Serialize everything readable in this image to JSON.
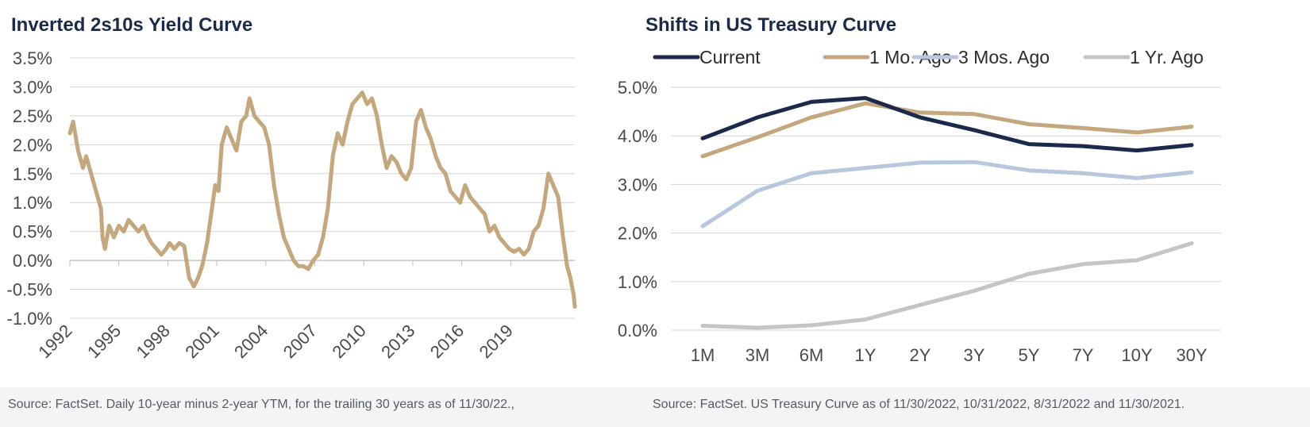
{
  "left": {
    "title": "Inverted 2s10s Yield Curve",
    "source": "Source: FactSet. Daily 10-year minus 2-year YTM, for the trailing 30 years as of 11/30/22.,"
  },
  "right": {
    "title": "Shifts in US Treasury Curve",
    "source": "Source: FactSet. US Treasury Curve as of 11/30/2022, 10/31/2022, 8/31/2022 and 11/30/2021."
  },
  "chart_data": [
    {
      "type": "line",
      "title": "Inverted 2s10s Yield Curve",
      "xlabel": "",
      "ylabel": "",
      "xlim": [
        1992.0,
        2022.92
      ],
      "ylim": [
        -1.0,
        3.5
      ],
      "yticks": [
        "3.5%",
        "3.0%",
        "2.5%",
        "2.0%",
        "1.5%",
        "1.0%",
        "0.5%",
        "0.0%",
        "-0.5%",
        "-1.0%"
      ],
      "xticks": [
        "1992",
        "1995",
        "1998",
        "2001",
        "2004",
        "2007",
        "2010",
        "2013",
        "2016",
        "2019"
      ],
      "xtick_values": [
        1992,
        1995,
        1998,
        2001,
        2004,
        2007,
        2010,
        2013,
        2016,
        2019
      ],
      "grid": true,
      "series": [
        {
          "color": "#c4a77d",
          "x": [
            1992.0,
            1992.2,
            1992.5,
            1992.8,
            1993.0,
            1993.3,
            1993.6,
            1993.9,
            1994.0,
            1994.15,
            1994.4,
            1994.7,
            1995.0,
            1995.3,
            1995.6,
            1995.9,
            1996.2,
            1996.5,
            1996.8,
            1997.0,
            1997.3,
            1997.6,
            1997.9,
            1998.1,
            1998.4,
            1998.7,
            1999.0,
            1999.3,
            1999.6,
            1999.85,
            2000.1,
            2000.4,
            2000.7,
            2000.9,
            2001.1,
            2001.3,
            2001.6,
            2001.9,
            2002.2,
            2002.5,
            2002.8,
            2003.0,
            2003.3,
            2003.6,
            2003.9,
            2004.2,
            2004.5,
            2004.8,
            2005.1,
            2005.4,
            2005.7,
            2006.0,
            2006.3,
            2006.6,
            2006.9,
            2007.2,
            2007.5,
            2007.8,
            2008.1,
            2008.4,
            2008.7,
            2009.0,
            2009.3,
            2009.6,
            2009.9,
            2010.2,
            2010.5,
            2010.8,
            2011.1,
            2011.4,
            2011.7,
            2012.0,
            2012.3,
            2012.6,
            2012.9,
            2013.2,
            2013.5,
            2013.8,
            2014.1,
            2014.4,
            2014.7,
            2015.0,
            2015.3,
            2015.6,
            2015.9,
            2016.2,
            2016.5,
            2016.8,
            2017.1,
            2017.4,
            2017.7,
            2018.0,
            2018.3,
            2018.6,
            2018.9,
            2019.2,
            2019.5,
            2019.8,
            2020.1,
            2020.4,
            2020.7,
            2021.0,
            2021.3,
            2021.6,
            2021.9,
            2022.2,
            2022.45,
            2022.65,
            2022.85,
            2022.92
          ],
          "values": [
            2.2,
            2.4,
            1.9,
            1.6,
            1.8,
            1.5,
            1.2,
            0.9,
            0.4,
            0.2,
            0.6,
            0.4,
            0.6,
            0.5,
            0.7,
            0.6,
            0.5,
            0.6,
            0.4,
            0.3,
            0.2,
            0.1,
            0.2,
            0.3,
            0.2,
            0.3,
            0.25,
            -0.3,
            -0.45,
            -0.3,
            -0.1,
            0.3,
            0.9,
            1.3,
            1.2,
            2.0,
            2.3,
            2.1,
            1.9,
            2.4,
            2.5,
            2.8,
            2.5,
            2.4,
            2.3,
            2.0,
            1.3,
            0.8,
            0.4,
            0.2,
            0.0,
            -0.1,
            -0.1,
            -0.15,
            0.0,
            0.1,
            0.4,
            0.9,
            1.8,
            2.2,
            2.0,
            2.4,
            2.7,
            2.8,
            2.9,
            2.7,
            2.8,
            2.5,
            2.0,
            1.6,
            1.8,
            1.7,
            1.5,
            1.4,
            1.6,
            2.4,
            2.6,
            2.3,
            2.1,
            1.8,
            1.6,
            1.5,
            1.2,
            1.1,
            1.0,
            1.3,
            1.1,
            1.0,
            0.9,
            0.8,
            0.5,
            0.6,
            0.4,
            0.3,
            0.2,
            0.15,
            0.2,
            0.1,
            0.2,
            0.5,
            0.6,
            0.9,
            1.5,
            1.3,
            1.1,
            0.4,
            -0.1,
            -0.3,
            -0.6,
            -0.8
          ]
        }
      ]
    },
    {
      "type": "line",
      "title": "Shifts in US Treasury Curve",
      "xlabel": "",
      "ylabel": "",
      "categories": [
        "1M",
        "3M",
        "6M",
        "1Y",
        "2Y",
        "3Y",
        "5Y",
        "7Y",
        "10Y",
        "30Y"
      ],
      "ylim": [
        0.0,
        5.0
      ],
      "yticks": [
        "5.0%",
        "4.0%",
        "3.0%",
        "2.0%",
        "1.0%",
        "0.0%"
      ],
      "grid": true,
      "legend": "top",
      "series": [
        {
          "name": "Current",
          "color": "#1b2a4a",
          "values": [
            3.95,
            4.38,
            4.7,
            4.78,
            4.38,
            4.12,
            3.83,
            3.79,
            3.7,
            3.81
          ]
        },
        {
          "name": "1 Mo. Ago",
          "color": "#c4a77d",
          "values": [
            3.58,
            3.97,
            4.38,
            4.67,
            4.48,
            4.45,
            4.24,
            4.16,
            4.07,
            4.19
          ]
        },
        {
          "name": "3 Mos. Ago",
          "color": "#b7c7de",
          "values": [
            2.14,
            2.87,
            3.23,
            3.34,
            3.45,
            3.46,
            3.29,
            3.23,
            3.13,
            3.25
          ]
        },
        {
          "name": "1 Yr. Ago",
          "color": "#c5c5c5",
          "values": [
            0.09,
            0.05,
            0.1,
            0.22,
            0.52,
            0.81,
            1.16,
            1.36,
            1.44,
            1.79
          ]
        }
      ]
    }
  ]
}
